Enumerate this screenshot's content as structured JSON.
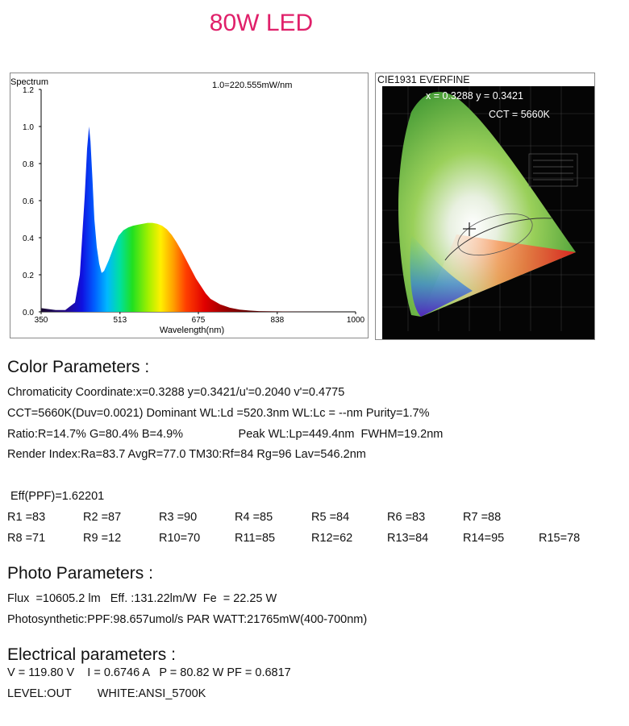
{
  "title": "80W LED",
  "spectrum": {
    "label": "Spectrum",
    "scale_note": "1.0=220.555mW/nm",
    "xlabel": "Wavelength(nm)",
    "x_ticks": [
      "350",
      "513",
      "675",
      "838",
      "1000"
    ],
    "y_ticks": [
      "0.0",
      "0.2",
      "0.4",
      "0.6",
      "0.8",
      "1.0",
      "1.2"
    ]
  },
  "cie": {
    "title": "CIE1931 EVERFINE",
    "coords": "x = 0.3288 y = 0.3421",
    "cct": "CCT = 5660K"
  },
  "color_params": {
    "heading": "Color Parameters :",
    "lines": [
      "Chromaticity Coordinate:x=0.3288  y=0.3421/u'=0.2040 v'=0.4775",
      "CCT=5660K(Duv=0.0021) Dominant WL:Ld =520.3nm WL:Lc = --nm Purity=1.7%",
      "Ratio:R=14.7% G=80.4% B=4.9%                 Peak WL:Lp=449.4nm  FWHM=19.2nm",
      "Render Index:Ra=83.7  AvgR=77.0  TM30:Rf=84 Rg=96  Lav=546.2nm"
    ],
    "eff_ppf": "Eff(PPF)=1.62201",
    "r_row1": [
      "R1 =83",
      "R2 =87",
      "R3 =90",
      "R4 =85",
      "R5 =84",
      "R6 =83",
      "R7 =88"
    ],
    "r_row2": [
      "R8 =71",
      "R9 =12",
      "R10=70",
      "R11=85",
      "R12=62",
      "R13=84",
      "R14=95",
      "R15=78"
    ]
  },
  "photo_params": {
    "heading": "Photo Parameters :",
    "lines": [
      "Flux  =10605.2 lm   Eff. :131.22lm/W  Fe  = 22.25 W",
      "Photosynthetic:PPF:98.657umol/s PAR WATT:21765mW(400-700nm)"
    ]
  },
  "electrical_params": {
    "heading": "Electrical parameters :",
    "lines": [
      "V = 119.80 V    I = 0.6746 A   P = 80.82 W PF = 0.6817",
      "LEVEL:OUT        WHITE:ANSI_5700K"
    ]
  },
  "chart_data": {
    "type": "area",
    "title": "Spectrum",
    "xlabel": "Wavelength(nm)",
    "ylabel": "",
    "xlim": [
      350,
      1000
    ],
    "ylim": [
      0,
      1.2
    ],
    "x": [
      350,
      380,
      400,
      420,
      430,
      440,
      445,
      449,
      452,
      456,
      460,
      465,
      470,
      475,
      480,
      490,
      500,
      510,
      520,
      530,
      540,
      550,
      560,
      570,
      580,
      590,
      600,
      610,
      620,
      630,
      640,
      650,
      660,
      670,
      680,
      690,
      700,
      720,
      740,
      760,
      780,
      800,
      850,
      900,
      1000
    ],
    "y": [
      0.02,
      0.01,
      0.01,
      0.05,
      0.2,
      0.62,
      0.88,
      1.0,
      0.92,
      0.72,
      0.5,
      0.35,
      0.26,
      0.21,
      0.22,
      0.28,
      0.35,
      0.41,
      0.44,
      0.455,
      0.465,
      0.47,
      0.475,
      0.48,
      0.48,
      0.475,
      0.465,
      0.445,
      0.415,
      0.375,
      0.33,
      0.28,
      0.23,
      0.18,
      0.14,
      0.1,
      0.07,
      0.04,
      0.022,
      0.012,
      0.007,
      0.004,
      0.002,
      0.001,
      0.0
    ],
    "grid": false
  }
}
